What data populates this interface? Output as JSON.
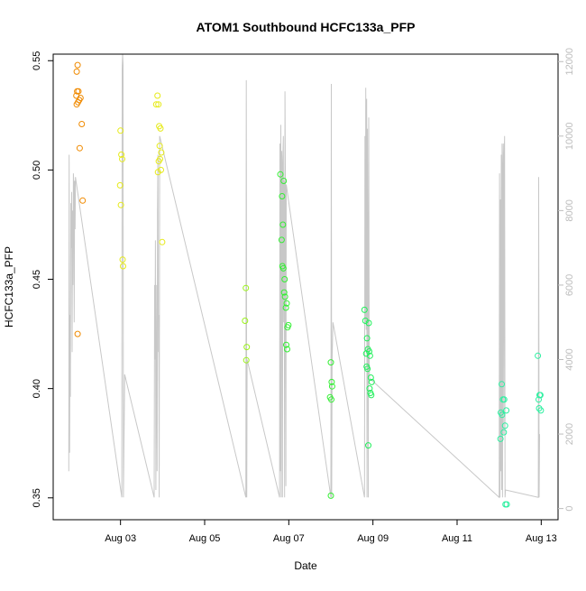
{
  "chart_data": {
    "type": "scatter",
    "title": "ATOM1 Southbound HCFC133a_PFP",
    "xlabel": "Date",
    "ylabel": "HCFC133a_PFP",
    "x_ticks": [
      "Aug 03",
      "Aug 05",
      "Aug 07",
      "Aug 09",
      "Aug 11",
      "Aug 13"
    ],
    "y_ticks": [
      "0.35",
      "0.40",
      "0.45",
      "0.50",
      "0.55"
    ],
    "y_right_ticks": [
      "0",
      "2000",
      "4000",
      "6000",
      "8000",
      "10000",
      "12000"
    ],
    "xlim": [
      1.4,
      13.4
    ],
    "ylim": [
      0.34,
      0.553
    ],
    "y_right_lim": [
      -300,
      12200
    ],
    "grid": false,
    "colors": {
      "points_start": "#f08a00",
      "points_mid": "#d8ff1a",
      "points_green": "#2aff3a",
      "points_end": "#2affb0",
      "altitude_line": "#c8c8c8",
      "right_axis": "#bdbdbd"
    },
    "series": [
      {
        "color": "#f08a00",
        "points": [
          [
            1.98,
            0.548
          ],
          [
            1.96,
            0.545
          ],
          [
            1.97,
            0.536
          ],
          [
            2.0,
            0.536
          ],
          [
            1.95,
            0.534
          ],
          [
            1.99,
            0.531
          ],
          [
            2.05,
            0.533
          ],
          [
            2.02,
            0.532
          ],
          [
            1.96,
            0.53
          ],
          [
            2.08,
            0.521
          ],
          [
            2.03,
            0.51
          ],
          [
            2.1,
            0.486
          ],
          [
            1.98,
            0.425
          ]
        ]
      },
      {
        "color": "#e6ea18",
        "points": [
          [
            3.0,
            0.518
          ],
          [
            3.02,
            0.507
          ],
          [
            3.04,
            0.505
          ],
          [
            2.99,
            0.493
          ],
          [
            3.01,
            0.484
          ],
          [
            3.05,
            0.459
          ],
          [
            3.06,
            0.456
          ],
          [
            3.88,
            0.534
          ],
          [
            3.85,
            0.53
          ],
          [
            3.9,
            0.53
          ],
          [
            3.92,
            0.52
          ],
          [
            3.95,
            0.519
          ],
          [
            3.93,
            0.511
          ],
          [
            3.97,
            0.508
          ],
          [
            3.91,
            0.504
          ],
          [
            3.94,
            0.505
          ],
          [
            3.96,
            0.5
          ],
          [
            3.89,
            0.499
          ],
          [
            3.99,
            0.467
          ]
        ]
      },
      {
        "color": "#9bf21a",
        "points": [
          [
            5.98,
            0.446
          ],
          [
            5.96,
            0.431
          ],
          [
            6.0,
            0.419
          ],
          [
            5.99,
            0.413
          ]
        ]
      },
      {
        "color": "#33ef33",
        "points": [
          [
            6.8,
            0.498
          ],
          [
            6.88,
            0.495
          ],
          [
            6.84,
            0.488
          ],
          [
            6.86,
            0.475
          ],
          [
            6.83,
            0.468
          ],
          [
            6.85,
            0.456
          ],
          [
            6.87,
            0.455
          ],
          [
            6.9,
            0.45
          ],
          [
            6.89,
            0.444
          ],
          [
            6.91,
            0.442
          ],
          [
            6.95,
            0.439
          ],
          [
            6.93,
            0.437
          ],
          [
            6.97,
            0.428
          ],
          [
            6.99,
            0.429
          ],
          [
            6.94,
            0.42
          ],
          [
            6.96,
            0.418
          ],
          [
            8.0,
            0.412
          ],
          [
            8.02,
            0.403
          ],
          [
            8.03,
            0.401
          ],
          [
            7.98,
            0.396
          ],
          [
            8.01,
            0.395
          ],
          [
            8.0,
            0.351
          ]
        ]
      },
      {
        "color": "#22f05c",
        "points": [
          [
            8.8,
            0.436
          ],
          [
            8.82,
            0.431
          ],
          [
            8.9,
            0.43
          ],
          [
            8.86,
            0.423
          ],
          [
            8.84,
            0.416
          ],
          [
            8.88,
            0.418
          ],
          [
            8.91,
            0.417
          ],
          [
            8.93,
            0.415
          ],
          [
            8.85,
            0.41
          ],
          [
            8.87,
            0.409
          ],
          [
            8.95,
            0.405
          ],
          [
            8.97,
            0.403
          ],
          [
            8.92,
            0.4
          ],
          [
            8.94,
            0.398
          ],
          [
            8.96,
            0.397
          ],
          [
            8.89,
            0.374
          ]
        ]
      },
      {
        "color": "#2cf0a0",
        "points": [
          [
            12.06,
            0.402
          ],
          [
            12.09,
            0.395
          ],
          [
            12.12,
            0.395
          ],
          [
            12.17,
            0.39
          ],
          [
            12.04,
            0.389
          ],
          [
            12.07,
            0.388
          ],
          [
            12.14,
            0.383
          ],
          [
            12.11,
            0.38
          ],
          [
            12.03,
            0.377
          ],
          [
            12.15,
            0.347
          ],
          [
            12.18,
            0.347
          ],
          [
            12.92,
            0.415
          ],
          [
            12.96,
            0.397
          ],
          [
            12.98,
            0.397
          ],
          [
            12.94,
            0.395
          ],
          [
            12.95,
            0.391
          ],
          [
            12.99,
            0.39
          ]
        ]
      }
    ],
    "altitude_trace": [
      [
        1.77,
        1000
      ],
      [
        1.78,
        9500
      ],
      [
        1.79,
        1500
      ],
      [
        1.8,
        5200
      ],
      [
        1.81,
        3000
      ],
      [
        1.82,
        8200
      ],
      [
        1.83,
        7000
      ],
      [
        1.84,
        8500
      ],
      [
        1.85,
        4200
      ],
      [
        1.86,
        8000
      ],
      [
        1.87,
        6000
      ],
      [
        1.88,
        9000
      ],
      [
        1.89,
        8700
      ],
      [
        1.9,
        5000
      ],
      [
        1.91,
        8800
      ],
      [
        1.92,
        7500
      ],
      [
        1.93,
        8900
      ],
      [
        3.03,
        300
      ],
      [
        3.04,
        11800
      ],
      [
        3.05,
        12200
      ],
      [
        3.06,
        11900
      ],
      [
        3.07,
        300
      ],
      [
        3.1,
        3600
      ],
      [
        3.8,
        300
      ],
      [
        3.81,
        6000
      ],
      [
        3.82,
        4000
      ],
      [
        3.83,
        7200
      ],
      [
        3.84,
        500
      ],
      [
        3.85,
        3000
      ],
      [
        3.86,
        6000
      ],
      [
        3.87,
        1000
      ],
      [
        3.88,
        8000
      ],
      [
        3.89,
        9500
      ],
      [
        3.9,
        4200
      ],
      [
        3.91,
        5200
      ],
      [
        3.92,
        300
      ],
      [
        3.93,
        10000
      ],
      [
        5.98,
        300
      ],
      [
        5.99,
        11500
      ],
      [
        6.0,
        300
      ],
      [
        6.01,
        4000
      ],
      [
        6.78,
        300
      ],
      [
        6.79,
        9800
      ],
      [
        6.8,
        1000
      ],
      [
        6.81,
        10300
      ],
      [
        6.82,
        300
      ],
      [
        6.83,
        9600
      ],
      [
        6.84,
        9200
      ],
      [
        6.85,
        300
      ],
      [
        6.86,
        9500
      ],
      [
        6.87,
        10000
      ],
      [
        6.88,
        5000
      ],
      [
        6.89,
        8800
      ],
      [
        6.9,
        300
      ],
      [
        6.91,
        11200
      ],
      [
        6.92,
        8600
      ],
      [
        6.93,
        600
      ],
      [
        6.94,
        8700
      ],
      [
        8.0,
        300
      ],
      [
        8.01,
        11400
      ],
      [
        8.02,
        300
      ],
      [
        8.03,
        4000
      ],
      [
        8.05,
        5000
      ],
      [
        8.8,
        300
      ],
      [
        8.81,
        10000
      ],
      [
        8.82,
        5000
      ],
      [
        8.83,
        11300
      ],
      [
        8.84,
        4800
      ],
      [
        8.85,
        11000
      ],
      [
        8.86,
        300
      ],
      [
        8.87,
        10200
      ],
      [
        8.88,
        6000
      ],
      [
        8.89,
        300
      ],
      [
        8.9,
        10500
      ],
      [
        8.91,
        4000
      ],
      [
        8.92,
        3500
      ],
      [
        12.0,
        300
      ],
      [
        12.01,
        9000
      ],
      [
        12.02,
        300
      ],
      [
        12.03,
        8300
      ],
      [
        12.04,
        1000
      ],
      [
        12.05,
        9500
      ],
      [
        12.06,
        500
      ],
      [
        12.07,
        9800
      ],
      [
        12.08,
        300
      ],
      [
        12.09,
        9200
      ],
      [
        12.1,
        9800
      ],
      [
        12.11,
        2000
      ],
      [
        12.12,
        9500
      ],
      [
        12.13,
        10000
      ],
      [
        12.14,
        300
      ],
      [
        12.15,
        500
      ],
      [
        12.93,
        300
      ],
      [
        12.94,
        8900
      ],
      [
        12.95,
        300
      ],
      [
        12.96,
        2000
      ]
    ]
  }
}
